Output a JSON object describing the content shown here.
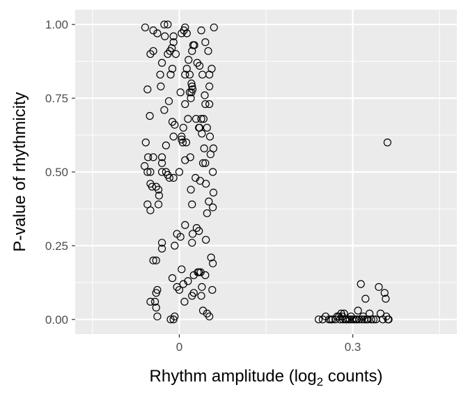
{
  "chart_data": {
    "type": "scatter",
    "xlabel_parts": {
      "pre": "Rhythm amplitude (log",
      "sub": "2",
      "post": " counts)"
    },
    "ylabel": "P-value of rhythmicity",
    "xlim": [
      -0.18,
      0.48
    ],
    "ylim": [
      -0.05,
      1.05
    ],
    "x_ticks": [
      0,
      0.3
    ],
    "x_tick_labels": [
      "0",
      "0.3"
    ],
    "y_ticks": [
      0,
      0.25,
      0.5,
      0.75,
      1
    ],
    "y_tick_labels": [
      "0.00",
      "0.25",
      "0.50",
      "0.75",
      "1.00"
    ],
    "grid": true,
    "panel_background": "#ebebeb",
    "grid_color": "#ffffff",
    "point_color": "#000000",
    "point_shape": "open-circle",
    "series": [
      {
        "points": [
          [
            -0.059,
            0.99
          ],
          [
            -0.045,
            0.98
          ],
          [
            -0.038,
            0.97
          ],
          [
            -0.025,
            0.96
          ],
          [
            -0.026,
            1.0
          ],
          [
            -0.02,
            1.0
          ],
          [
            -0.01,
            0.96
          ],
          [
            0.004,
            0.97
          ],
          [
            0.008,
            0.98
          ],
          [
            0.01,
            0.99
          ],
          [
            0.013,
            0.97
          ],
          [
            0.038,
            0.98
          ],
          [
            0.06,
            0.99
          ],
          [
            -0.05,
            0.9
          ],
          [
            -0.045,
            0.91
          ],
          [
            -0.03,
            0.87
          ],
          [
            -0.02,
            0.9
          ],
          [
            -0.016,
            0.91
          ],
          [
            -0.013,
            0.92
          ],
          [
            -0.01,
            0.94
          ],
          [
            -0.006,
            0.9
          ],
          [
            0.022,
            0.91
          ],
          [
            0.024,
            0.93
          ],
          [
            0.026,
            0.93
          ],
          [
            0.045,
            0.94
          ],
          [
            0.05,
            0.91
          ],
          [
            0.016,
            0.88
          ],
          [
            -0.032,
            0.79
          ],
          [
            -0.055,
            0.78
          ],
          [
            -0.033,
            0.83
          ],
          [
            -0.012,
            0.85
          ],
          [
            -0.015,
            0.83
          ],
          [
            0.01,
            0.83
          ],
          [
            0.013,
            0.85
          ],
          [
            0.018,
            0.83
          ],
          [
            0.031,
            0.87
          ],
          [
            0.035,
            0.86
          ],
          [
            0.04,
            0.83
          ],
          [
            0.056,
            0.85
          ],
          [
            0.052,
            0.83
          ],
          [
            0.052,
            0.79
          ],
          [
            0.021,
            0.8
          ],
          [
            0.022,
            0.79
          ],
          [
            0.023,
            0.78
          ],
          [
            0.018,
            0.77
          ],
          [
            0.021,
            0.77
          ],
          [
            0.002,
            0.77
          ],
          [
            0.044,
            0.76
          ],
          [
            0.02,
            0.75
          ],
          [
            0.01,
            0.73
          ],
          [
            -0.018,
            0.74
          ],
          [
            -0.051,
            0.69
          ],
          [
            -0.026,
            0.71
          ],
          [
            0.045,
            0.73
          ],
          [
            0.052,
            0.73
          ],
          [
            0.038,
            0.68
          ],
          [
            0.034,
            0.65
          ],
          [
            -0.012,
            0.67
          ],
          [
            -0.008,
            0.66
          ],
          [
            0.015,
            0.68
          ],
          [
            0.029,
            0.68
          ],
          [
            0.042,
            0.68
          ],
          [
            0.048,
            0.65
          ],
          [
            0.035,
            0.65
          ],
          [
            0.007,
            0.65
          ],
          [
            0.053,
            0.62
          ],
          [
            0.039,
            0.63
          ],
          [
            -0.01,
            0.62
          ],
          [
            0.004,
            0.62
          ],
          [
            0.004,
            0.61
          ],
          [
            0.006,
            0.6
          ],
          [
            0.012,
            0.6
          ],
          [
            -0.023,
            0.59
          ],
          [
            -0.058,
            0.6
          ],
          [
            0.043,
            0.58
          ],
          [
            0.059,
            0.58
          ],
          [
            0.054,
            0.56
          ],
          [
            0.045,
            0.53
          ],
          [
            0.041,
            0.53
          ],
          [
            0.019,
            0.55
          ],
          [
            0.01,
            0.54
          ],
          [
            -0.054,
            0.55
          ],
          [
            -0.045,
            0.55
          ],
          [
            -0.03,
            0.55
          ],
          [
            -0.03,
            0.53
          ],
          [
            -0.06,
            0.52
          ],
          [
            -0.055,
            0.5
          ],
          [
            -0.05,
            0.5
          ],
          [
            -0.03,
            0.5
          ],
          [
            -0.023,
            0.5
          ],
          [
            -0.02,
            0.49
          ],
          [
            -0.017,
            0.48
          ],
          [
            -0.01,
            0.48
          ],
          [
            0.0,
            0.5
          ],
          [
            0.028,
            0.48
          ],
          [
            0.036,
            0.47
          ],
          [
            0.046,
            0.46
          ],
          [
            0.058,
            0.5
          ],
          [
            0.059,
            0.43
          ],
          [
            0.02,
            0.44
          ],
          [
            -0.05,
            0.46
          ],
          [
            -0.047,
            0.45
          ],
          [
            -0.04,
            0.45
          ],
          [
            -0.036,
            0.44
          ],
          [
            -0.035,
            0.42
          ],
          [
            -0.055,
            0.39
          ],
          [
            -0.05,
            0.37
          ],
          [
            -0.036,
            0.39
          ],
          [
            0.022,
            0.39
          ],
          [
            0.051,
            0.4
          ],
          [
            0.058,
            0.38
          ],
          [
            0.048,
            0.36
          ],
          [
            0.01,
            0.32
          ],
          [
            0.03,
            0.31
          ],
          [
            0.046,
            0.27
          ],
          [
            0.022,
            0.26
          ],
          [
            0.023,
            0.29
          ],
          [
            0.034,
            0.3
          ],
          [
            -0.004,
            0.29
          ],
          [
            0.002,
            0.28
          ],
          [
            -0.008,
            0.25
          ],
          [
            -0.03,
            0.26
          ],
          [
            -0.03,
            0.24
          ],
          [
            -0.04,
            0.2
          ],
          [
            -0.045,
            0.2
          ],
          [
            0.055,
            0.21
          ],
          [
            0.058,
            0.19
          ],
          [
            0.034,
            0.16
          ],
          [
            0.045,
            0.15
          ],
          [
            0.037,
            0.16
          ],
          [
            0.032,
            0.16
          ],
          [
            0.025,
            0.15
          ],
          [
            0.004,
            0.17
          ],
          [
            -0.012,
            0.14
          ],
          [
            0.007,
            0.12
          ],
          [
            0.015,
            0.13
          ],
          [
            -0.004,
            0.11
          ],
          [
            0.0,
            0.1
          ],
          [
            -0.038,
            0.1
          ],
          [
            -0.04,
            0.09
          ],
          [
            -0.05,
            0.06
          ],
          [
            -0.042,
            0.06
          ],
          [
            -0.04,
            0.04
          ],
          [
            -0.038,
            0.01
          ],
          [
            -0.015,
            0.0
          ],
          [
            -0.01,
            0.0
          ],
          [
            -0.008,
            0.01
          ],
          [
            0.009,
            0.06
          ],
          [
            0.022,
            0.08
          ],
          [
            0.025,
            0.09
          ],
          [
            0.038,
            0.08
          ],
          [
            0.039,
            0.11
          ],
          [
            0.057,
            0.1
          ],
          [
            0.041,
            0.03
          ],
          [
            0.048,
            0.02
          ],
          [
            0.052,
            0.01
          ],
          [
            0.241,
            0.0
          ],
          [
            0.248,
            0.0
          ],
          [
            0.253,
            0.01
          ],
          [
            0.259,
            0.0
          ],
          [
            0.262,
            0.0
          ],
          [
            0.265,
            0.0
          ],
          [
            0.27,
            0.0
          ],
          [
            0.273,
            0.01
          ],
          [
            0.276,
            0.01
          ],
          [
            0.278,
            0.0
          ],
          [
            0.28,
            0.02
          ],
          [
            0.282,
            0.01
          ],
          [
            0.283,
            0.0
          ],
          [
            0.285,
            0.02
          ],
          [
            0.287,
            0.0
          ],
          [
            0.289,
            0.0
          ],
          [
            0.292,
            0.0
          ],
          [
            0.295,
            0.0
          ],
          [
            0.297,
            0.01
          ],
          [
            0.299,
            0.0
          ],
          [
            0.302,
            0.0
          ],
          [
            0.305,
            0.0
          ],
          [
            0.307,
            0.0
          ],
          [
            0.309,
            0.03
          ],
          [
            0.311,
            0.0
          ],
          [
            0.314,
            0.12
          ],
          [
            0.316,
            0.0
          ],
          [
            0.318,
            0.01
          ],
          [
            0.32,
            0.0
          ],
          [
            0.322,
            0.07
          ],
          [
            0.324,
            0.0
          ],
          [
            0.326,
            0.0
          ],
          [
            0.329,
            0.02
          ],
          [
            0.332,
            0.0
          ],
          [
            0.336,
            0.0
          ],
          [
            0.34,
            0.0
          ],
          [
            0.345,
            0.11
          ],
          [
            0.348,
            0.02
          ],
          [
            0.352,
            0.0
          ],
          [
            0.355,
            0.09
          ],
          [
            0.357,
            0.07
          ],
          [
            0.358,
            0.01
          ],
          [
            0.361,
            0.0
          ],
          [
            0.362,
            0.0
          ],
          [
            0.36,
            0.6
          ]
        ]
      }
    ]
  }
}
